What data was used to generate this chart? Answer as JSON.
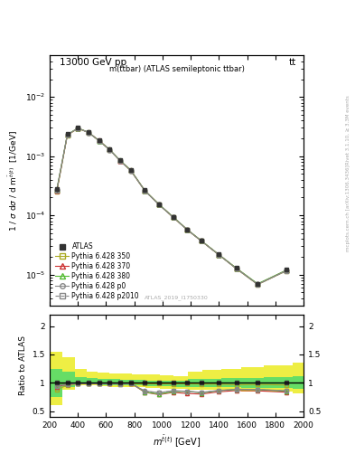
{
  "title_top": "13000 GeV pp",
  "title_right": "tt",
  "plot_title": "m(ttbar) (ATLAS semileptonic ttbar)",
  "watermark": "ATLAS_2019_I1750330",
  "right_label1": "Rivet 3.1.10, ≥ 3.3M events",
  "right_label2": "mcplots.cern.ch [arXiv:1306.3436]",
  "ylabel_main": "1 / σ dσ / d m^{tbar(t)}  [1/GeV]",
  "ylabel_ratio": "Ratio to ATLAS",
  "xlabel": "m^{tbar(t)} [GeV]",
  "xlim": [
    200,
    2000
  ],
  "ylim_main": [
    3e-06,
    0.05
  ],
  "ylim_ratio": [
    0.4,
    2.2
  ],
  "x_values": [
    250,
    325,
    400,
    475,
    550,
    625,
    700,
    775,
    875,
    975,
    1075,
    1175,
    1275,
    1400,
    1525,
    1675,
    1875
  ],
  "x_edges": [
    200,
    300,
    350,
    450,
    500,
    600,
    650,
    750,
    800,
    950,
    1000,
    1100,
    1200,
    1300,
    1500,
    1550,
    1800,
    2000
  ],
  "atlas_y": [
    0.00028,
    0.00235,
    0.003,
    0.00255,
    0.00185,
    0.0013,
    0.00085,
    0.00058,
    0.000265,
    0.000155,
    9.5e-05,
    5.8e-05,
    3.8e-05,
    2.2e-05,
    1.3e-05,
    7e-06,
    1.2e-05
  ],
  "atlas_yerr": [
    3e-05,
    0.00015,
    0.00015,
    0.0001,
    8e-05,
    5e-05,
    3e-05,
    2e-05,
    8e-06,
    5e-06,
    3e-06,
    2e-06,
    1.5e-06,
    8e-07,
    5e-07,
    3e-07,
    5e-07
  ],
  "py350_y": [
    0.00025,
    0.00225,
    0.00295,
    0.0025,
    0.00182,
    0.00128,
    0.00083,
    0.00057,
    0.00026,
    0.000152,
    9.3e-05,
    5.7e-05,
    3.7e-05,
    2.15e-05,
    1.25e-05,
    6.8e-06,
    1.15e-05
  ],
  "py370_y": [
    0.00026,
    0.00228,
    0.00297,
    0.00252,
    0.00184,
    0.00129,
    0.00084,
    0.000575,
    0.000262,
    0.000153,
    9.4e-05,
    5.75e-05,
    3.72e-05,
    2.17e-05,
    1.27e-05,
    6.9e-06,
    1.17e-05
  ],
  "py380_y": [
    0.00027,
    0.00232,
    0.00298,
    0.00253,
    0.00183,
    0.0013,
    0.000845,
    0.00058,
    0.000263,
    0.000154,
    9.45e-05,
    5.78e-05,
    3.75e-05,
    2.18e-05,
    1.28e-05,
    7e-06,
    1.18e-05
  ],
  "pyp0_y": [
    0.000265,
    0.0023,
    0.00296,
    0.00251,
    0.00182,
    0.001285,
    0.000835,
    0.000572,
    0.000261,
    0.000152,
    9.35e-05,
    5.72e-05,
    3.71e-05,
    2.16e-05,
    1.26e-05,
    6.85e-06,
    1.16e-05
  ],
  "pyp2010_y": [
    0.000262,
    0.00227,
    0.00296,
    0.00251,
    0.00182,
    0.00128,
    0.000832,
    0.00057,
    0.00026,
    0.000151,
    9.32e-05,
    5.71e-05,
    3.7e-05,
    2.15e-05,
    1.25e-05,
    6.82e-06,
    1.15e-05
  ],
  "ratio_py350": [
    0.88,
    0.955,
    0.983,
    0.981,
    0.985,
    0.985,
    0.976,
    0.983,
    0.982,
    0.981,
    0.98,
    0.984,
    0.975,
    0.977,
    0.963,
    0.971,
    0.96
  ],
  "ratio_py370": [
    0.93,
    0.97,
    0.99,
    0.99,
    0.995,
    0.992,
    0.988,
    0.991,
    0.832,
    0.79,
    0.83,
    0.81,
    0.8,
    0.84,
    0.862,
    0.857,
    0.833
  ],
  "ratio_py380": [
    0.96,
    0.987,
    0.993,
    0.992,
    0.989,
    1.0,
    0.994,
    1.0,
    0.836,
    0.8,
    0.84,
    0.85,
    0.82,
    0.86,
    0.88,
    0.88,
    0.85
  ],
  "ratio_pyp0": [
    0.946,
    0.979,
    0.987,
    0.984,
    0.984,
    0.988,
    0.982,
    0.986,
    0.855,
    0.825,
    0.86,
    0.85,
    0.83,
    0.865,
    0.885,
    0.882,
    0.86
  ],
  "ratio_pyp2010": [
    0.936,
    0.966,
    0.987,
    0.984,
    0.984,
    0.985,
    0.979,
    0.983,
    0.851,
    0.821,
    0.856,
    0.847,
    0.826,
    0.861,
    0.882,
    0.879,
    0.856
  ],
  "band_x_edges": [
    200,
    290,
    380,
    460,
    540,
    620,
    700,
    780,
    880,
    980,
    1080,
    1180,
    1280,
    1420,
    1560,
    1720,
    1920,
    2000
  ],
  "band_yellow_lo": [
    0.6,
    0.88,
    0.95,
    0.95,
    0.94,
    0.93,
    0.92,
    0.92,
    0.91,
    0.9,
    0.89,
    0.88,
    0.87,
    0.86,
    0.85,
    0.84,
    0.82
  ],
  "band_yellow_hi": [
    1.55,
    1.45,
    1.25,
    1.2,
    1.18,
    1.17,
    1.16,
    1.15,
    1.14,
    1.13,
    1.12,
    1.2,
    1.22,
    1.25,
    1.28,
    1.3,
    1.35
  ],
  "band_green_lo": [
    0.75,
    0.92,
    0.97,
    0.97,
    0.96,
    0.96,
    0.95,
    0.95,
    0.94,
    0.94,
    0.93,
    0.93,
    0.93,
    0.92,
    0.91,
    0.91,
    0.9
  ],
  "band_green_hi": [
    1.25,
    1.2,
    1.1,
    1.08,
    1.07,
    1.06,
    1.05,
    1.05,
    1.04,
    1.04,
    1.04,
    1.06,
    1.07,
    1.08,
    1.09,
    1.1,
    1.12
  ],
  "color_atlas": "#333333",
  "color_py350": "#aaaa22",
  "color_py370": "#cc3333",
  "color_py380": "#55bb33",
  "color_pyp0": "#888888",
  "color_pyp2010": "#888888",
  "color_yellow": "#eeee44",
  "color_green": "#66dd66",
  "bg_color": "#ffffff",
  "right_text_color": "#aaaaaa"
}
